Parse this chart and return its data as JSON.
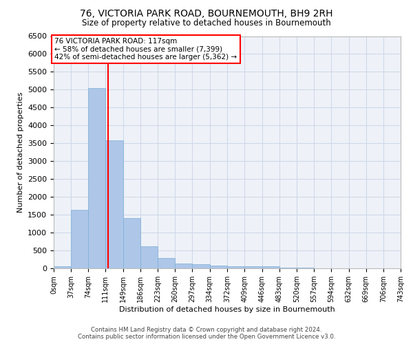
{
  "title": "76, VICTORIA PARK ROAD, BOURNEMOUTH, BH9 2RH",
  "subtitle": "Size of property relative to detached houses in Bournemouth",
  "xlabel": "Distribution of detached houses by size in Bournemouth",
  "ylabel": "Number of detached properties",
  "bar_color": "#aec6e8",
  "bar_edge_color": "#7aafd4",
  "grid_color": "#d0d8e8",
  "background_color": "#eef2f8",
  "property_line_x": 117,
  "property_line_color": "red",
  "annotation_text": "76 VICTORIA PARK ROAD: 117sqm\n← 58% of detached houses are smaller (7,399)\n42% of semi-detached houses are larger (5,362) →",
  "bin_edges": [
    0,
    37,
    74,
    111,
    149,
    186,
    223,
    260,
    297,
    334,
    372,
    409,
    446,
    483,
    520,
    557,
    594,
    632,
    669,
    706,
    743
  ],
  "bin_counts": [
    65,
    1640,
    5050,
    3580,
    1400,
    620,
    290,
    140,
    110,
    80,
    50,
    50,
    50,
    20,
    10,
    5,
    5,
    5,
    5,
    5
  ],
  "ylim": [
    0,
    6500
  ],
  "yticks": [
    0,
    500,
    1000,
    1500,
    2000,
    2500,
    3000,
    3500,
    4000,
    4500,
    5000,
    5500,
    6000,
    6500
  ],
  "footer_line1": "Contains HM Land Registry data © Crown copyright and database right 2024.",
  "footer_line2": "Contains public sector information licensed under the Open Government Licence v3.0."
}
